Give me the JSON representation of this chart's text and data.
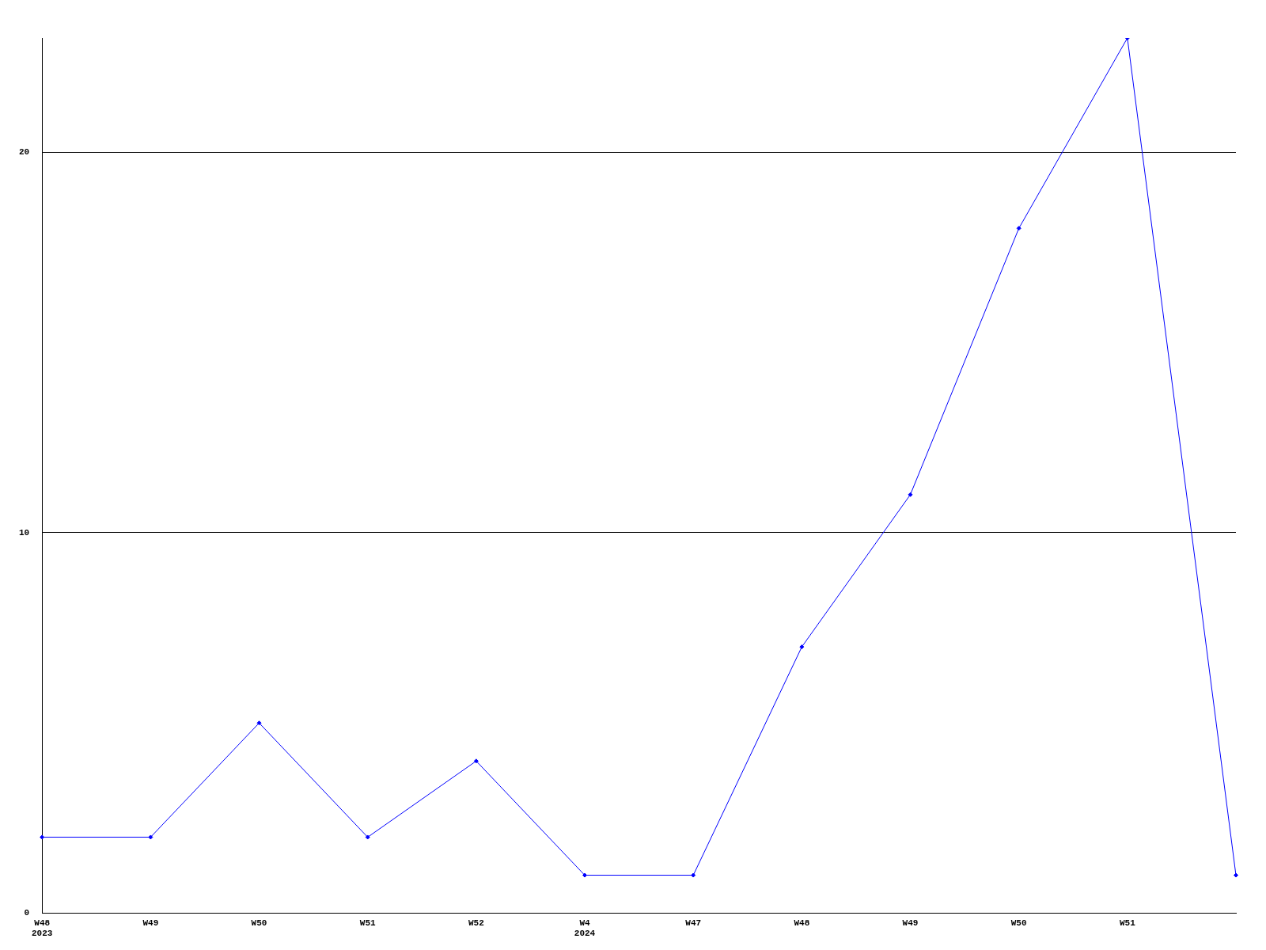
{
  "chart_data": {
    "type": "line",
    "categories": [
      "W48\n2023",
      "W49",
      "W50",
      "W51",
      "W52",
      "W4\n2024",
      "W47",
      "W48",
      "W49",
      "W50",
      "W51",
      null
    ],
    "series": [
      {
        "color": "#0000ff",
        "values": [
          2,
          2,
          5,
          2,
          4,
          1,
          1,
          7,
          11,
          18,
          23,
          1
        ]
      }
    ],
    "ylim": [
      0,
      23
    ],
    "yticks": [
      0,
      10,
      20
    ],
    "grid": "y",
    "legend": false,
    "marker": "diamond",
    "line_style": "solid"
  }
}
